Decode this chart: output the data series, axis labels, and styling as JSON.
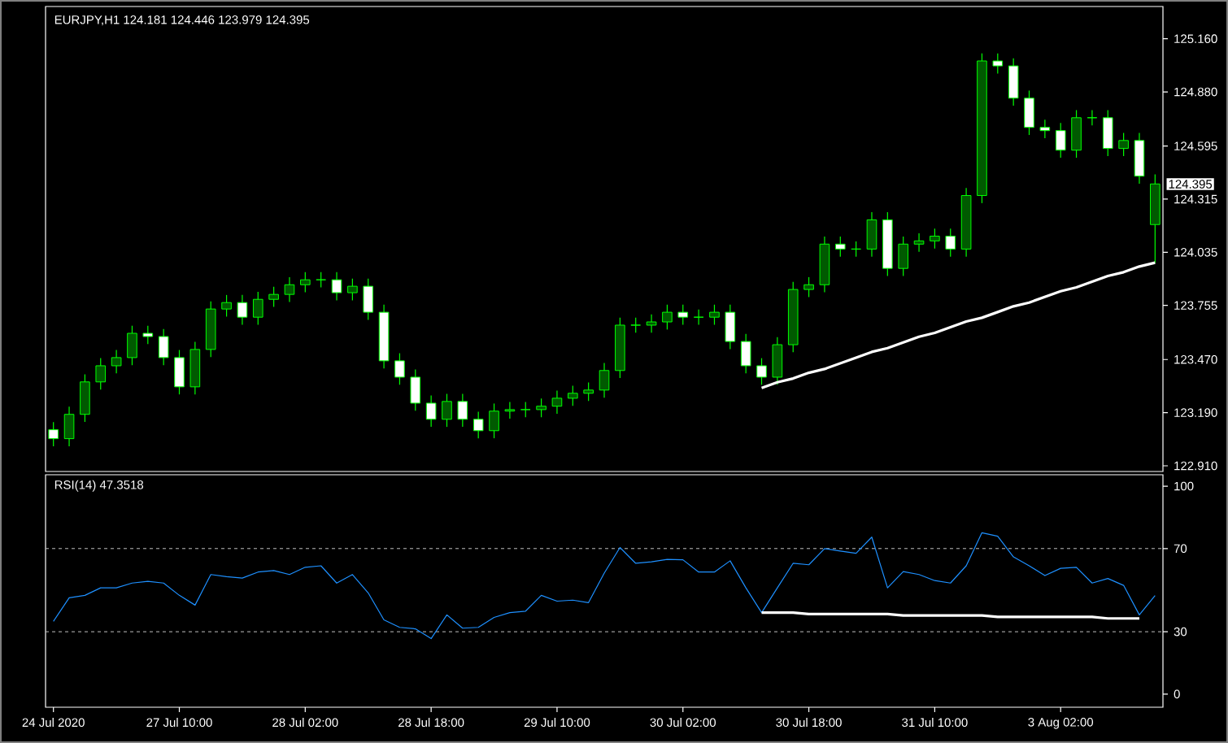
{
  "chart_data": [
    {
      "type": "candlestick",
      "title": "EURJPY,H1  124.181 124.446 123.979 124.395",
      "color": "#00ff00",
      "tick_labels": "y",
      "categories": [
        null,
        null,
        null,
        null,
        null,
        null,
        null,
        null,
        null,
        null,
        null,
        null,
        null,
        null,
        null,
        null,
        null,
        null,
        null,
        null,
        null,
        null,
        null,
        null,
        null,
        null,
        null,
        null,
        null,
        null,
        null,
        null,
        null,
        null,
        null,
        null,
        null,
        null,
        null,
        null,
        null,
        null,
        null,
        null,
        null,
        null,
        null,
        null,
        null,
        null,
        null,
        null,
        null,
        null,
        null,
        null,
        null,
        null,
        null,
        null,
        null,
        null,
        null,
        null,
        null,
        null,
        null,
        null,
        null,
        null,
        null
      ],
      "ohlc": [
        [
          123.1,
          123.14,
          123.013,
          123.053
        ],
        [
          123.053,
          123.221,
          123.013,
          123.181
        ],
        [
          123.181,
          123.392,
          123.141,
          123.352
        ],
        [
          123.352,
          123.477,
          123.312,
          123.437
        ],
        [
          123.437,
          123.52,
          123.397,
          123.48
        ],
        [
          123.48,
          123.648,
          123.44,
          123.608
        ],
        [
          123.608,
          123.648,
          123.551,
          123.591
        ],
        [
          123.591,
          123.631,
          123.44,
          123.48
        ],
        [
          123.48,
          123.52,
          123.286,
          123.326
        ],
        [
          123.326,
          123.563,
          123.286,
          123.523
        ],
        [
          123.523,
          123.776,
          123.483,
          123.736
        ],
        [
          123.736,
          123.81,
          123.696,
          123.77
        ],
        [
          123.77,
          123.81,
          123.653,
          123.693
        ],
        [
          123.693,
          123.827,
          123.653,
          123.787
        ],
        [
          123.787,
          123.853,
          123.747,
          123.813
        ],
        [
          123.813,
          123.904,
          123.773,
          123.864
        ],
        [
          123.864,
          123.93,
          123.824,
          123.89
        ],
        [
          123.89,
          123.93,
          123.85,
          123.89
        ],
        [
          123.89,
          123.93,
          123.782,
          123.822
        ],
        [
          123.822,
          123.896,
          123.782,
          123.856
        ],
        [
          123.856,
          123.896,
          123.679,
          123.719
        ],
        [
          123.719,
          123.759,
          123.423,
          123.463
        ],
        [
          123.463,
          123.503,
          123.337,
          123.377
        ],
        [
          123.377,
          123.417,
          123.2,
          123.24
        ],
        [
          123.24,
          123.28,
          123.115,
          123.155
        ],
        [
          123.155,
          123.289,
          123.115,
          123.249
        ],
        [
          123.249,
          123.289,
          123.115,
          123.155
        ],
        [
          123.155,
          123.195,
          123.055,
          123.095
        ],
        [
          123.095,
          123.238,
          123.055,
          123.198
        ],
        [
          123.198,
          123.246,
          123.158,
          123.206
        ],
        [
          123.206,
          123.246,
          123.166,
          123.206
        ],
        [
          123.206,
          123.264,
          123.166,
          123.224
        ],
        [
          123.224,
          123.306,
          123.184,
          123.266
        ],
        [
          123.266,
          123.332,
          123.226,
          123.292
        ],
        [
          123.292,
          123.349,
          123.252,
          123.309
        ],
        [
          123.309,
          123.452,
          123.269,
          123.412
        ],
        [
          123.412,
          123.691,
          123.372,
          123.651
        ],
        [
          123.651,
          123.691,
          123.611,
          123.651
        ],
        [
          123.651,
          123.708,
          123.611,
          123.668
        ],
        [
          123.668,
          123.759,
          123.628,
          123.719
        ],
        [
          123.719,
          123.759,
          123.653,
          123.693
        ],
        [
          123.693,
          123.733,
          123.653,
          123.693
        ],
        [
          123.693,
          123.759,
          123.653,
          123.719
        ],
        [
          123.719,
          123.759,
          123.525,
          123.565
        ],
        [
          123.565,
          123.605,
          123.397,
          123.437
        ],
        [
          123.437,
          123.477,
          123.337,
          123.377
        ],
        [
          123.377,
          123.588,
          123.337,
          123.548
        ],
        [
          123.548,
          123.879,
          123.508,
          123.839
        ],
        [
          123.839,
          123.904,
          123.799,
          123.864
        ],
        [
          123.864,
          124.118,
          123.824,
          124.078
        ],
        [
          124.078,
          124.118,
          124.012,
          124.052
        ],
        [
          124.052,
          124.092,
          124.012,
          124.052
        ],
        [
          124.052,
          124.246,
          124.012,
          124.206
        ],
        [
          124.206,
          124.246,
          123.91,
          123.95
        ],
        [
          123.95,
          124.118,
          123.91,
          124.078
        ],
        [
          124.078,
          124.135,
          124.038,
          124.095
        ],
        [
          124.095,
          124.16,
          124.055,
          124.12
        ],
        [
          124.12,
          124.16,
          124.012,
          124.052
        ],
        [
          124.052,
          124.374,
          124.012,
          124.334
        ],
        [
          124.334,
          125.083,
          124.294,
          125.043
        ],
        [
          125.043,
          125.083,
          124.977,
          125.017
        ],
        [
          125.017,
          125.057,
          124.807,
          124.847
        ],
        [
          124.847,
          124.887,
          124.653,
          124.693
        ],
        [
          124.693,
          124.733,
          124.636,
          124.676
        ],
        [
          124.676,
          124.716,
          124.533,
          124.573
        ],
        [
          124.573,
          124.784,
          124.533,
          124.744
        ],
        [
          124.744,
          124.784,
          124.704,
          124.744
        ],
        [
          124.744,
          124.784,
          124.542,
          124.582
        ],
        [
          124.582,
          124.664,
          124.542,
          124.624
        ],
        [
          124.624,
          124.664,
          124.396,
          124.436
        ],
        [
          124.181,
          124.446,
          123.979,
          124.395
        ]
      ],
      "series": [
        {
          "type": "line",
          "color": "#ffffff",
          "values": [
            null,
            null,
            null,
            null,
            null,
            null,
            null,
            null,
            null,
            null,
            null,
            null,
            null,
            null,
            null,
            null,
            null,
            null,
            null,
            null,
            null,
            null,
            null,
            null,
            null,
            null,
            null,
            null,
            null,
            null,
            null,
            null,
            null,
            null,
            null,
            null,
            null,
            null,
            null,
            null,
            null,
            null,
            null,
            null,
            null,
            123.32,
            123.35,
            123.37,
            123.4,
            123.42,
            123.45,
            123.48,
            123.51,
            123.53,
            123.56,
            123.59,
            123.61,
            123.64,
            123.67,
            123.69,
            123.72,
            123.75,
            123.77,
            123.8,
            123.83,
            123.85,
            123.88,
            123.91,
            123.93,
            123.96,
            123.98
          ]
        }
      ],
      "ylim": [
        122.88,
        125.33
      ],
      "yticks": [
        {
          "value": 122.91,
          "label": "122.910"
        },
        {
          "value": 123.19,
          "label": "123.190"
        },
        {
          "value": 123.47,
          "label": "123.470"
        },
        {
          "value": 123.755,
          "label": "123.755"
        },
        {
          "value": 124.035,
          "label": "124.035"
        },
        {
          "value": 124.315,
          "label": "124.315"
        },
        {
          "value": 124.595,
          "label": "124.595"
        },
        {
          "value": 124.88,
          "label": "124.880"
        },
        {
          "value": 125.16,
          "label": "125.160"
        }
      ],
      "annotations": [
        "124.395"
      ]
    },
    {
      "type": "line",
      "title": "RSI(14) 47.3518",
      "categories": [
        "24 Jul 2020",
        null,
        null,
        null,
        null,
        null,
        null,
        null,
        "27 Jul 10:00",
        null,
        null,
        null,
        null,
        null,
        null,
        null,
        "28 Jul 02:00",
        null,
        null,
        null,
        null,
        null,
        null,
        null,
        "28 Jul 18:00",
        null,
        null,
        null,
        null,
        null,
        null,
        null,
        "29 Jul 10:00",
        null,
        null,
        null,
        null,
        null,
        null,
        null,
        "30 Jul 02:00",
        null,
        null,
        null,
        null,
        null,
        null,
        null,
        "30 Jul 18:00",
        null,
        null,
        null,
        null,
        null,
        null,
        null,
        "31 Jul 10:00",
        null,
        null,
        null,
        null,
        null,
        null,
        null,
        "3 Aug 02:00",
        null,
        null,
        null,
        null,
        null,
        null
      ],
      "series": [
        {
          "color": "#1e90ff",
          "values": [
            35.0,
            46.3,
            47.5,
            51.1,
            51.1,
            53.4,
            54.2,
            53.4,
            47.5,
            42.8,
            57.5,
            56.5,
            55.8,
            58.7,
            59.4,
            57.5,
            61.0,
            61.7,
            53.4,
            57.5,
            48.7,
            35.7,
            32.1,
            31.4,
            26.7,
            38.1,
            31.7,
            32.1,
            36.9,
            39.2,
            39.9,
            47.5,
            44.7,
            45.2,
            44.0,
            58.2,
            70.5,
            62.9,
            63.6,
            64.8,
            64.6,
            58.7,
            58.7,
            64.1,
            51.1,
            39.2,
            51.1,
            62.9,
            62.2,
            70.0,
            68.8,
            67.7,
            75.5,
            51.1,
            58.9,
            57.5,
            54.6,
            53.4,
            61.7,
            77.6,
            75.9,
            66.0,
            61.7,
            57.0,
            60.5,
            61.0,
            53.4,
            55.6,
            52.3,
            38.1,
            47.4
          ]
        },
        {
          "color": "#ffffff",
          "values": [
            null,
            null,
            null,
            null,
            null,
            null,
            null,
            null,
            null,
            null,
            null,
            null,
            null,
            null,
            null,
            null,
            null,
            null,
            null,
            null,
            null,
            null,
            null,
            null,
            null,
            null,
            null,
            null,
            null,
            null,
            null,
            null,
            null,
            null,
            null,
            null,
            null,
            null,
            null,
            null,
            null,
            null,
            null,
            null,
            null,
            39.2,
            39.2,
            39.2,
            38.5,
            38.5,
            38.5,
            38.5,
            38.5,
            38.5,
            37.8,
            37.8,
            37.8,
            37.8,
            37.8,
            37.8,
            37.1,
            37.1,
            37.1,
            37.1,
            37.1,
            37.1,
            37.1,
            36.4,
            36.4,
            36.4,
            null
          ]
        }
      ],
      "ylim": [
        -6.3,
        105.5
      ],
      "yticks": [
        0,
        30,
        70,
        100
      ],
      "ref_lines": [
        {
          "axis": "y",
          "value": 30,
          "color": "#c0c0c0",
          "line_style": "dashed"
        },
        {
          "axis": "y",
          "value": 70,
          "color": "#c0c0c0",
          "line_style": "dashed"
        }
      ]
    }
  ]
}
